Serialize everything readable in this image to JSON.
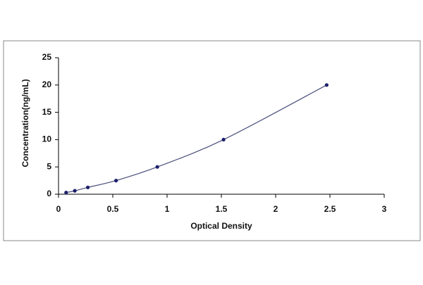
{
  "chart_data": {
    "type": "scatter",
    "x_label": "Optical Density",
    "y_label": "Concentration(ng/mL)",
    "series": [
      {
        "x": [
          0.07,
          0.15,
          0.27,
          0.53,
          0.91,
          1.52,
          2.47
        ],
        "values": [
          0.31,
          0.63,
          1.25,
          2.5,
          5,
          10,
          20
        ],
        "color": "#1c1f6b",
        "line_color": "#4a4f7a"
      }
    ],
    "xlim": [
      0,
      3
    ],
    "xticks": [
      0,
      0.5,
      1,
      1.5,
      2,
      2.5,
      3
    ],
    "ylim": [
      0,
      25
    ],
    "yticks": [
      0,
      5,
      10,
      15,
      20,
      25
    ],
    "grid": false
  }
}
